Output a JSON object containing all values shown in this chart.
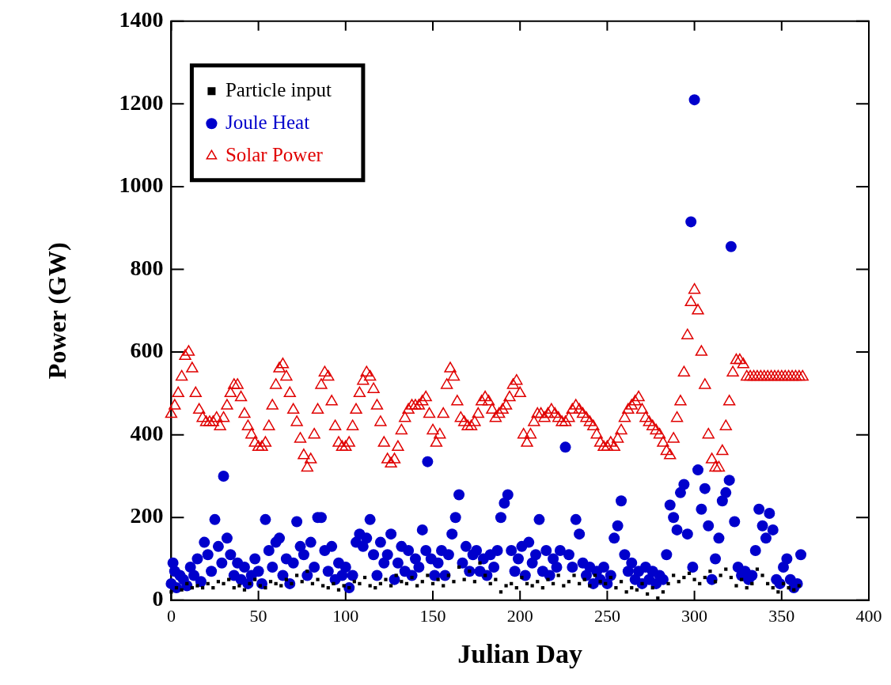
{
  "chart_data": {
    "type": "scatter",
    "xlabel": "Julian Day",
    "ylabel": "Power (GW)",
    "xlim": [
      0,
      400
    ],
    "xticks": [
      0,
      50,
      100,
      150,
      200,
      250,
      300,
      350,
      400
    ],
    "ylim": [
      0,
      1400
    ],
    "yticks": [
      0,
      200,
      400,
      600,
      800,
      1000,
      1200,
      1400
    ],
    "grid": false,
    "legend": "top left",
    "series": [
      {
        "name": "Particle input",
        "color": "#000000",
        "marker": "square",
        "x": [
          0,
          3,
          6,
          9,
          12,
          15,
          18,
          21,
          24,
          27,
          30,
          33,
          36,
          39,
          42,
          45,
          48,
          51,
          54,
          57,
          60,
          63,
          66,
          69,
          72,
          75,
          78,
          81,
          84,
          87,
          90,
          93,
          96,
          99,
          102,
          105,
          108,
          111,
          114,
          117,
          120,
          123,
          126,
          129,
          132,
          135,
          138,
          141,
          144,
          147,
          150,
          153,
          156,
          159,
          162,
          165,
          168,
          171,
          174,
          177,
          180,
          183,
          186,
          189,
          192,
          195,
          198,
          201,
          204,
          207,
          210,
          213,
          216,
          219,
          222,
          225,
          228,
          231,
          234,
          237,
          240,
          243,
          246,
          249,
          252,
          255,
          258,
          261,
          264,
          267,
          270,
          273,
          276,
          279,
          282,
          285,
          288,
          291,
          294,
          297,
          300,
          303,
          306,
          309,
          312,
          315,
          318,
          321,
          324,
          327,
          330,
          333,
          336,
          339,
          342,
          345,
          348,
          351,
          354,
          357,
          360
        ],
        "values": [
          20,
          30,
          25,
          40,
          30,
          35,
          30,
          40,
          30,
          45,
          40,
          50,
          30,
          35,
          25,
          40,
          50,
          35,
          30,
          45,
          40,
          35,
          50,
          40,
          60,
          45,
          70,
          40,
          50,
          35,
          30,
          40,
          25,
          35,
          30,
          45,
          40,
          55,
          35,
          30,
          40,
          50,
          35,
          60,
          45,
          40,
          55,
          35,
          45,
          60,
          40,
          50,
          35,
          60,
          45,
          80,
          50,
          70,
          45,
          90,
          60,
          40,
          50,
          20,
          35,
          40,
          30,
          55,
          40,
          35,
          45,
          30,
          50,
          40,
          60,
          35,
          45,
          60,
          40,
          50,
          35,
          60,
          45,
          40,
          55,
          30,
          45,
          20,
          30,
          25,
          40,
          15,
          30,
          5,
          20,
          40,
          60,
          45,
          55,
          65,
          50,
          40,
          55,
          70,
          45,
          60,
          75,
          55,
          35,
          50,
          30,
          40,
          75,
          60,
          40,
          30,
          20,
          40,
          30,
          25,
          35
        ]
      },
      {
        "name": "Joule Heat",
        "color": "#0000cc",
        "marker": "circle",
        "x": [
          0,
          1,
          2,
          3,
          5,
          7,
          9,
          11,
          13,
          15,
          17,
          19,
          21,
          23,
          25,
          27,
          29,
          30,
          32,
          34,
          36,
          38,
          40,
          42,
          44,
          46,
          48,
          50,
          52,
          54,
          56,
          58,
          60,
          62,
          64,
          66,
          68,
          70,
          72,
          74,
          76,
          78,
          80,
          82,
          84,
          86,
          88,
          90,
          92,
          94,
          96,
          98,
          100,
          102,
          104,
          106,
          108,
          110,
          112,
          114,
          116,
          118,
          120,
          122,
          124,
          126,
          128,
          130,
          132,
          134,
          136,
          138,
          140,
          142,
          144,
          146,
          147,
          149,
          151,
          153,
          155,
          157,
          159,
          161,
          163,
          165,
          167,
          169,
          171,
          173,
          175,
          177,
          179,
          181,
          183,
          185,
          187,
          189,
          191,
          193,
          195,
          197,
          199,
          201,
          203,
          205,
          207,
          209,
          211,
          213,
          215,
          217,
          219,
          221,
          223,
          226,
          228,
          230,
          232,
          234,
          236,
          238,
          240,
          242,
          244,
          246,
          248,
          250,
          252,
          254,
          256,
          258,
          260,
          262,
          264,
          266,
          268,
          270,
          272,
          274,
          276,
          278,
          280,
          282,
          284,
          286,
          288,
          290,
          292,
          294,
          296,
          298,
          299,
          300,
          302,
          304,
          306,
          308,
          310,
          312,
          314,
          316,
          318,
          320,
          321,
          323,
          325,
          327,
          329,
          331,
          333,
          335,
          337,
          339,
          341,
          343,
          345,
          347,
          349,
          351,
          353,
          355,
          357,
          359,
          361
        ],
        "values": [
          40,
          90,
          70,
          30,
          60,
          50,
          35,
          80,
          60,
          100,
          45,
          140,
          110,
          70,
          195,
          130,
          90,
          300,
          150,
          110,
          60,
          90,
          50,
          80,
          40,
          60,
          100,
          70,
          40,
          195,
          120,
          80,
          140,
          150,
          60,
          100,
          40,
          90,
          190,
          130,
          110,
          60,
          140,
          80,
          200,
          200,
          120,
          70,
          130,
          50,
          90,
          60,
          80,
          30,
          60,
          140,
          160,
          130,
          150,
          195,
          110,
          60,
          140,
          90,
          110,
          160,
          50,
          90,
          130,
          70,
          120,
          60,
          100,
          80,
          170,
          120,
          335,
          100,
          60,
          90,
          120,
          60,
          110,
          160,
          200,
          255,
          90,
          130,
          70,
          110,
          120,
          70,
          100,
          60,
          110,
          80,
          120,
          200,
          235,
          255,
          120,
          70,
          100,
          130,
          60,
          140,
          90,
          110,
          195,
          70,
          120,
          60,
          100,
          80,
          120,
          370,
          110,
          80,
          195,
          160,
          90,
          60,
          80,
          40,
          70,
          50,
          80,
          40,
          60,
          150,
          180,
          240,
          110,
          70,
          90,
          50,
          70,
          40,
          80,
          50,
          70,
          40,
          60,
          50,
          110,
          230,
          200,
          170,
          260,
          280,
          160,
          915,
          80,
          1210,
          315,
          220,
          270,
          180,
          50,
          100,
          150,
          240,
          260,
          290,
          855,
          190,
          80,
          60,
          70,
          50,
          60,
          120,
          220,
          180,
          150,
          210,
          170,
          50,
          40,
          80,
          100,
          50,
          30,
          40,
          110
        ]
      },
      {
        "name": "Solar Power",
        "color": "#e00000",
        "marker": "triangle",
        "x": [
          0,
          2,
          4,
          6,
          8,
          10,
          12,
          14,
          16,
          18,
          20,
          22,
          24,
          26,
          28,
          30,
          32,
          34,
          36,
          38,
          40,
          42,
          44,
          46,
          48,
          50,
          52,
          54,
          56,
          58,
          60,
          62,
          64,
          66,
          68,
          70,
          72,
          74,
          76,
          78,
          80,
          82,
          84,
          86,
          88,
          90,
          92,
          94,
          96,
          98,
          100,
          102,
          104,
          106,
          108,
          110,
          112,
          114,
          116,
          118,
          120,
          122,
          124,
          126,
          128,
          130,
          132,
          134,
          136,
          138,
          140,
          142,
          144,
          146,
          148,
          150,
          152,
          154,
          156,
          158,
          160,
          162,
          164,
          166,
          168,
          170,
          172,
          174,
          176,
          178,
          180,
          182,
          184,
          186,
          188,
          190,
          192,
          194,
          196,
          198,
          200,
          202,
          204,
          206,
          208,
          210,
          212,
          214,
          216,
          218,
          220,
          222,
          224,
          226,
          228,
          230,
          232,
          234,
          236,
          238,
          240,
          242,
          244,
          246,
          248,
          250,
          252,
          254,
          256,
          258,
          260,
          262,
          264,
          266,
          268,
          270,
          272,
          274,
          276,
          278,
          280,
          282,
          284,
          286,
          288,
          290,
          292,
          294,
          296,
          298,
          300,
          302,
          304,
          306,
          308,
          310,
          312,
          314,
          316,
          318,
          320,
          322,
          324,
          326,
          328,
          330,
          332,
          334,
          336,
          338,
          340,
          342,
          344,
          346,
          348,
          350,
          352,
          354,
          356,
          358,
          360,
          362
        ],
        "values": [
          450,
          470,
          500,
          540,
          590,
          600,
          560,
          500,
          460,
          440,
          430,
          430,
          430,
          440,
          420,
          440,
          470,
          500,
          520,
          520,
          490,
          450,
          420,
          400,
          380,
          370,
          370,
          380,
          420,
          470,
          520,
          560,
          570,
          540,
          500,
          460,
          430,
          390,
          350,
          320,
          340,
          400,
          460,
          520,
          550,
          540,
          480,
          420,
          380,
          370,
          370,
          380,
          420,
          460,
          500,
          530,
          550,
          540,
          510,
          470,
          430,
          380,
          340,
          330,
          340,
          370,
          410,
          440,
          460,
          470,
          470,
          470,
          480,
          490,
          450,
          410,
          380,
          400,
          450,
          520,
          560,
          540,
          480,
          440,
          430,
          420,
          420,
          430,
          450,
          480,
          490,
          480,
          460,
          440,
          450,
          460,
          470,
          490,
          520,
          530,
          500,
          400,
          380,
          400,
          430,
          450,
          450,
          440,
          450,
          460,
          450,
          440,
          430,
          430,
          440,
          460,
          470,
          460,
          450,
          440,
          430,
          420,
          400,
          380,
          370,
          370,
          380,
          370,
          390,
          410,
          440,
          460,
          470,
          480,
          490,
          460,
          440,
          430,
          420,
          410,
          400,
          380,
          360,
          350,
          390,
          440,
          480,
          550,
          640,
          720,
          750,
          700,
          600,
          520,
          400,
          340,
          320,
          320,
          360,
          420,
          480,
          550,
          580,
          580,
          570,
          540,
          540,
          540,
          540,
          540,
          540,
          540,
          540,
          540,
          540,
          540,
          540,
          540,
          540,
          540,
          540,
          540
        ]
      }
    ]
  }
}
